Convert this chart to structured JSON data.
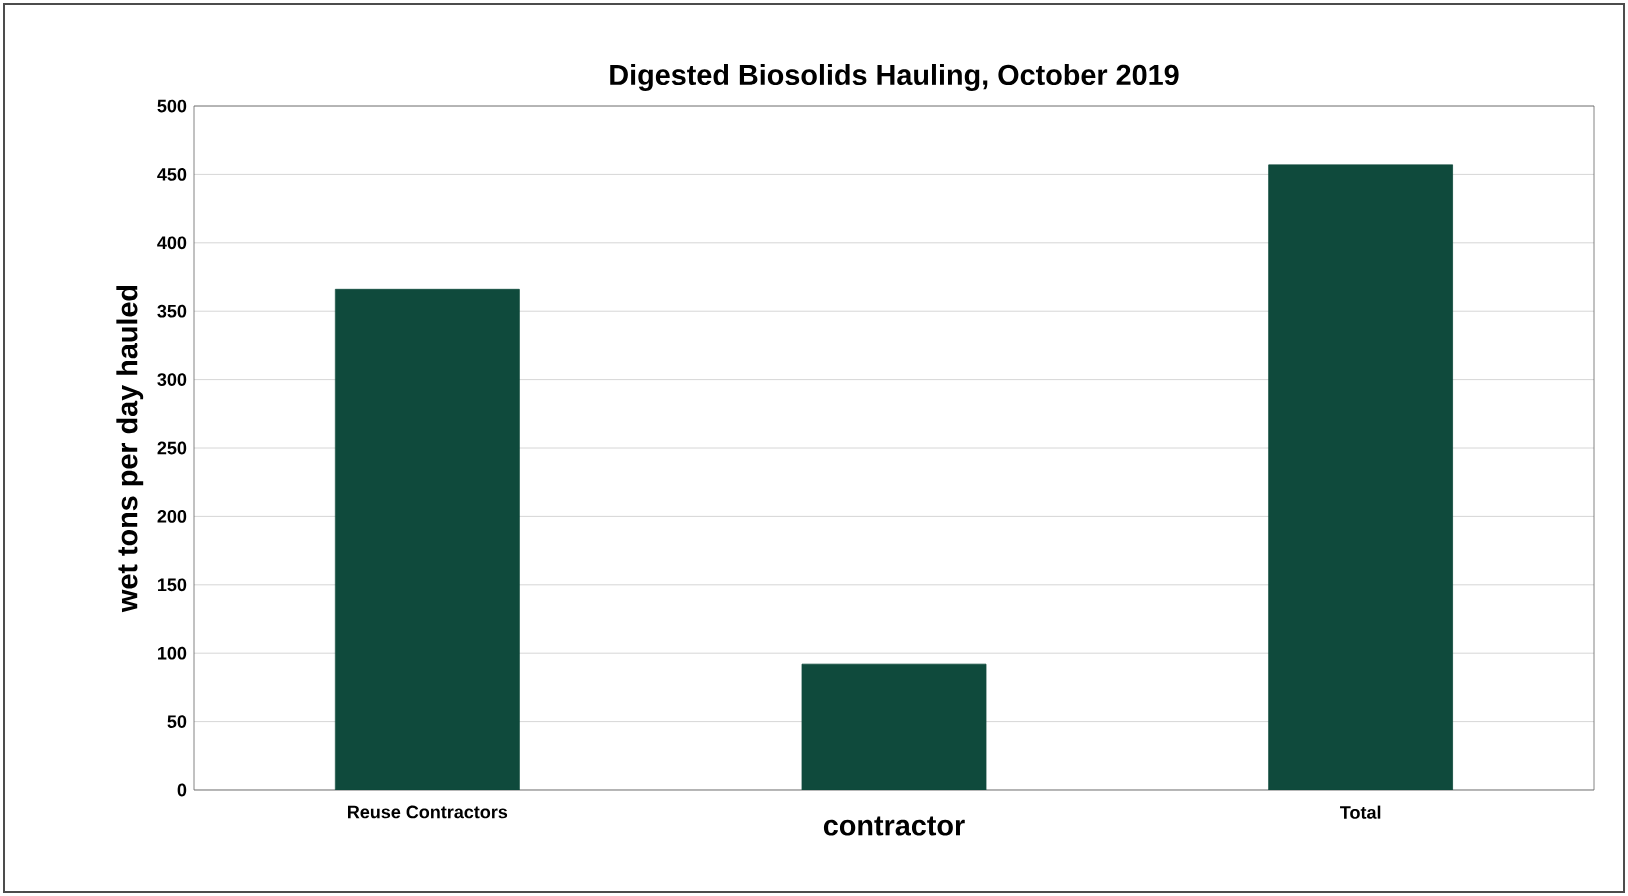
{
  "chart_data": {
    "type": "bar",
    "title": "Digested Biosolids Hauling, October 2019",
    "xlabel": "contractor",
    "ylabel": "wet tons per day hauled",
    "categories": [
      "Reuse Contractors",
      null,
      "Total"
    ],
    "values": [
      366,
      92,
      457
    ],
    "color": "#0f4a3c",
    "ylim": [
      0,
      500
    ],
    "yticks": [
      0,
      50,
      100,
      150,
      200,
      250,
      300,
      350,
      400,
      450,
      500
    ],
    "grid": "y"
  }
}
